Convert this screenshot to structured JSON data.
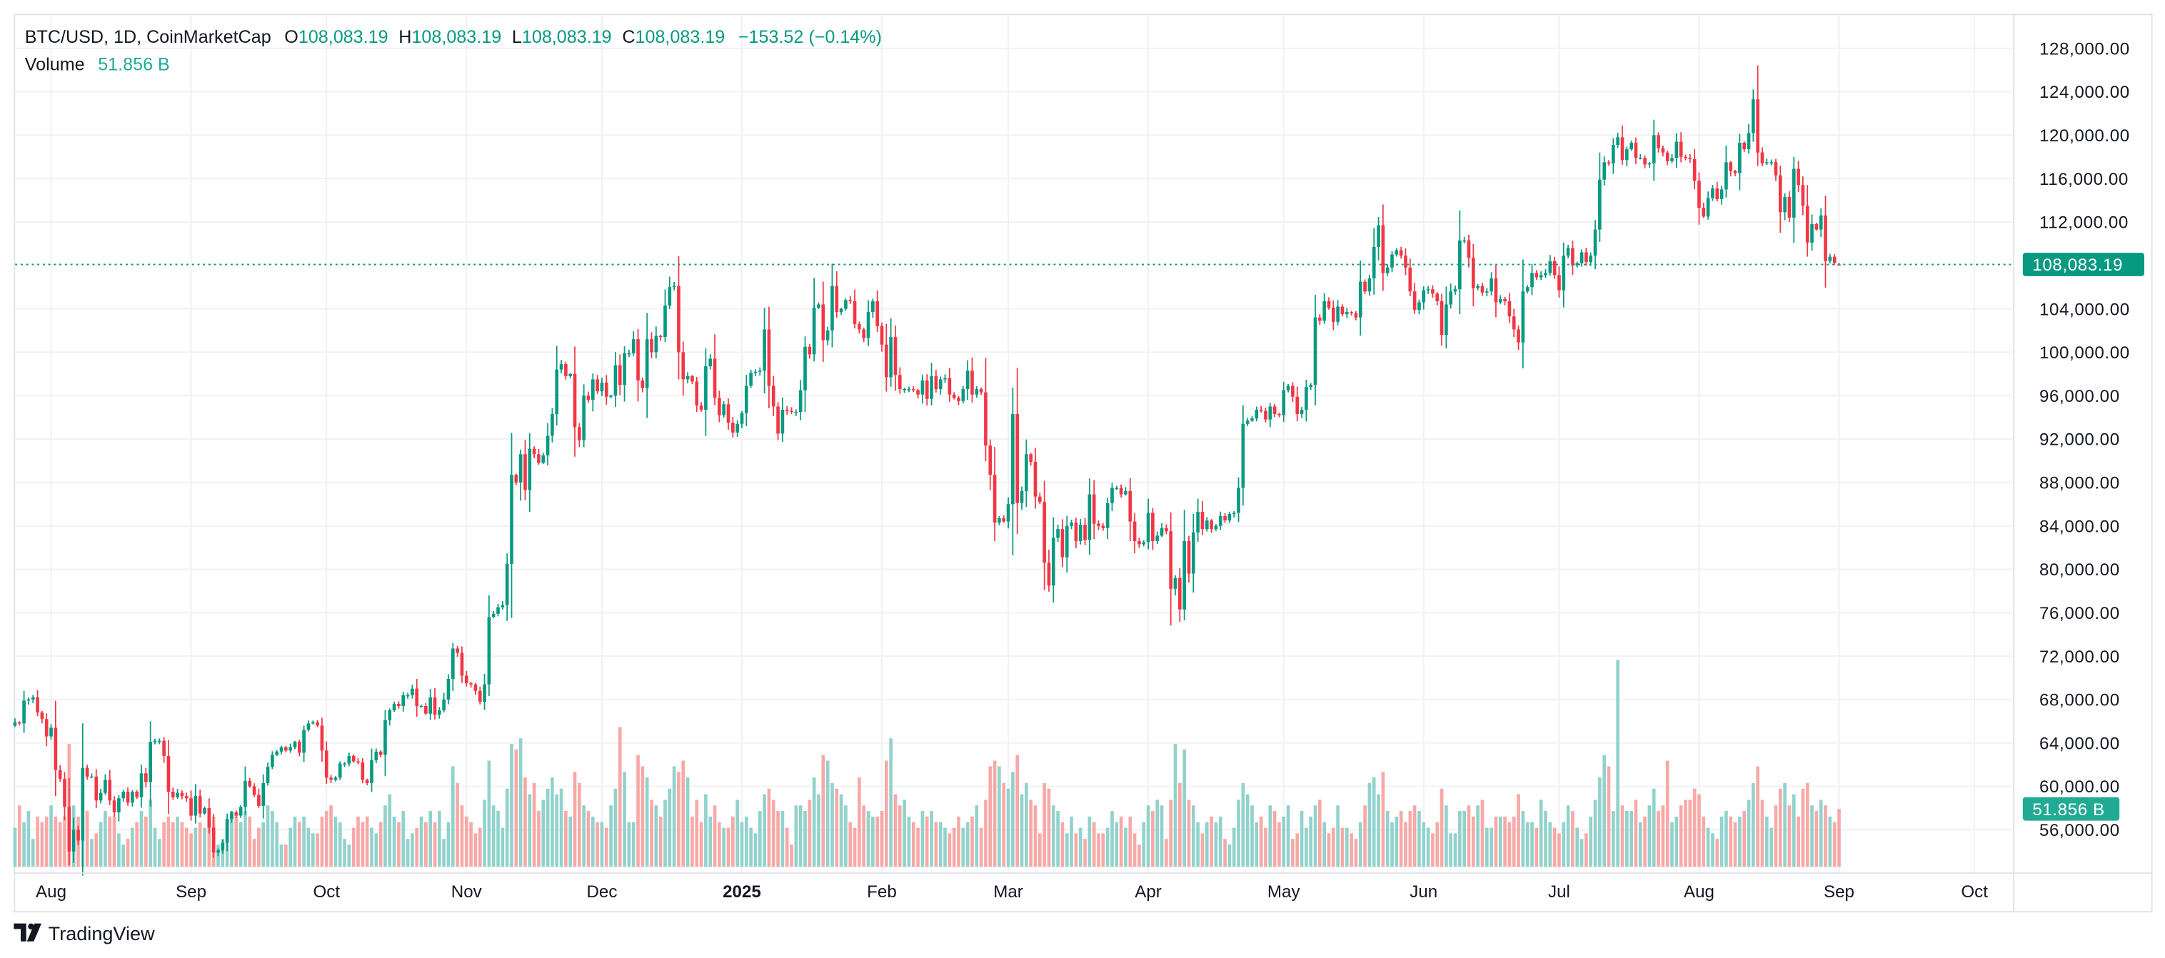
{
  "header": {
    "symbol": "BTC/USD, 1D, CoinMarketCap",
    "open_label": "O",
    "open": "108,083.19",
    "high_label": "H",
    "high": "108,083.19",
    "low_label": "L",
    "low": "108,083.19",
    "close_label": "C",
    "close": "108,083.19",
    "change": "−153.52 (−0.14%)",
    "volume_label": "Volume",
    "volume": "51.856 B"
  },
  "branding": {
    "name": "TradingView"
  },
  "colors": {
    "up": "#089981",
    "down": "#F23645",
    "up_volume": "#92D2CC",
    "down_volume": "#F7A9A7",
    "last_price": "#089981",
    "volume_label": "#22AB94"
  },
  "chart_data": {
    "type": "candlestick",
    "title": "BTC/USD, 1D, CoinMarketCap",
    "price_axis": {
      "ticks": [
        "128,000.00",
        "124,000.00",
        "120,000.00",
        "116,000.00",
        "112,000.00",
        "104,000.00",
        "100,000.00",
        "96,000.00",
        "92,000.00",
        "88,000.00",
        "84,000.00",
        "80,000.00",
        "76,000.00",
        "72,000.00",
        "68,000.00",
        "64,000.00",
        "60,000.00",
        "56,000.00"
      ],
      "tick_values": [
        128000,
        124000,
        120000,
        116000,
        112000,
        104000,
        100000,
        96000,
        92000,
        88000,
        84000,
        80000,
        76000,
        72000,
        68000,
        64000,
        60000,
        56000
      ],
      "range": [
        52800,
        130000
      ]
    },
    "time_axis": {
      "ticks": [
        "Aug",
        "Sep",
        "Oct",
        "Nov",
        "Dec",
        "2025",
        "Feb",
        "Mar",
        "Apr",
        "May",
        "Jun",
        "Jul",
        "Aug",
        "Sep",
        "Oct"
      ],
      "bold_tick": "2025"
    },
    "last_price": {
      "value": 108083.19,
      "label": "108,083.19"
    },
    "last_volume": {
      "value": 51.856,
      "label": "51.856 B"
    },
    "grid": true,
    "close": [
      65900,
      65800,
      67900,
      68000,
      68200,
      66800,
      66200,
      64600,
      65400,
      61500,
      60700,
      58100,
      54000,
      56000,
      55000,
      61700,
      60900,
      60900,
      58700,
      59400,
      60600,
      58700,
      57600,
      58900,
      59500,
      58500,
      59500,
      59000,
      61200,
      60400,
      64100,
      64200,
      64200,
      62800,
      59500,
      59000,
      59400,
      59100,
      58900,
      57300,
      59100,
      57500,
      58000,
      56200,
      53900,
      54100,
      54800,
      57000,
      57600,
      57300,
      58100,
      60500,
      60000,
      59200,
      58200,
      60300,
      61800,
      62900,
      63200,
      63600,
      63300,
      63600,
      64100,
      63100,
      65200,
      65800,
      65900,
      65600,
      63300,
      60800,
      60600,
      60800,
      62100,
      62100,
      62800,
      62300,
      62200,
      60600,
      60300,
      62400,
      63200,
      62900,
      66100,
      67000,
      67600,
      67400,
      68400,
      68400,
      69000,
      67400,
      67400,
      66700,
      68200,
      66600,
      67000,
      68000,
      69900,
      72700,
      72300,
      70200,
      69500,
      69400,
      68800,
      67800,
      69400,
      75600,
      75900,
      76500,
      76700,
      80500,
      88700,
      88000,
      90600,
      87300,
      91100,
      90600,
      89800,
      90500,
      92300,
      94300,
      98400,
      98900,
      97800,
      98000,
      93100,
      91900,
      96000,
      95600,
      97500,
      96400,
      97200,
      95900,
      96000,
      98800,
      97000,
      99900,
      99900,
      101200,
      97400,
      96700,
      101200,
      100000,
      101500,
      101400,
      104300,
      106000,
      106100,
      100000,
      97500,
      97800,
      97300,
      95100,
      94700,
      98700,
      99400,
      95800,
      94200,
      95200,
      93500,
      92600,
      93400,
      94400,
      96900,
      98100,
      98200,
      98300,
      102100,
      96900,
      95000,
      92500,
      94700,
      94600,
      94500,
      94500,
      96500,
      100500,
      99800,
      104100,
      104400,
      101100,
      102000,
      106100,
      103700,
      104000,
      104800,
      104700,
      102600,
      102100,
      101300,
      103700,
      104700,
      102400,
      100700,
      97700,
      101400,
      97900,
      96600,
      96600,
      96600,
      96500,
      96100,
      97400,
      95700,
      97800,
      96600,
      97500,
      97600,
      96100,
      95800,
      95500,
      96600,
      98300,
      96100,
      96600,
      96300,
      91400,
      88700,
      84300,
      84700,
      84400,
      86000,
      94300,
      86100,
      87200,
      90600,
      89900,
      86700,
      86200,
      80600,
      78500,
      82900,
      83700,
      81100,
      84000,
      84300,
      82600,
      84100,
      82700,
      86900,
      84200,
      84000,
      83800,
      86100,
      87500,
      87500,
      86900,
      87200,
      84400,
      82600,
      82300,
      82500,
      85200,
      82600,
      83100,
      83800,
      83500,
      78200,
      79200,
      76300,
      82600,
      79600,
      83400,
      85300,
      83700,
      84500,
      83700,
      84000,
      84900,
      84500,
      85100,
      85200,
      87500,
      93400,
      93700,
      93900,
      94700,
      94600,
      93800,
      95000,
      94300,
      94200,
      96500,
      96900,
      95900,
      94300,
      94700,
      96800,
      97000,
      103200,
      102900,
      104700,
      104100,
      102800,
      104200,
      103500,
      103700,
      103600,
      103200,
      106500,
      105600,
      106800,
      109700,
      111700,
      107300,
      107800,
      109000,
      109400,
      108900,
      107800,
      105600,
      103900,
      104600,
      105700,
      105800,
      105400,
      104700,
      101600,
      104400,
      105600,
      105800,
      110300,
      110300,
      108700,
      105900,
      106100,
      105500,
      105600,
      106800,
      104600,
      104900,
      104700,
      103300,
      102100,
      100900,
      105600,
      106000,
      107300,
      106900,
      107100,
      107300,
      108400,
      107100,
      105700,
      108900,
      109600,
      108000,
      108200,
      109200,
      108300,
      108900,
      111300,
      115900,
      117500,
      117400,
      119100,
      119800,
      117700,
      118700,
      119300,
      117900,
      117900,
      117300,
      117400,
      120000,
      118800,
      118400,
      117600,
      117900,
      119400,
      118000,
      117900,
      117800,
      115800,
      113300,
      112500,
      114200,
      115100,
      114100,
      115000,
      117500,
      116700,
      116500,
      119300,
      118700,
      120200,
      123300,
      118400,
      117400,
      117500,
      117500,
      116300,
      112900,
      114300,
      112400,
      116900,
      115400,
      113500,
      110100,
      111800,
      111300,
      112600,
      108400,
      108800,
      108236.71,
      108083.19
    ],
    "volume_billions": [
      35,
      55,
      40,
      50,
      25,
      45,
      40,
      45,
      55,
      45,
      40,
      45,
      110,
      55,
      45,
      70,
      50,
      25,
      30,
      40,
      50,
      45,
      45,
      30,
      20,
      25,
      35,
      40,
      50,
      45,
      60,
      35,
      25,
      40,
      45,
      40,
      45,
      40,
      35,
      30,
      35,
      40,
      35,
      40,
      45,
      20,
      25,
      40,
      50,
      45,
      40,
      50,
      45,
      25,
      35,
      40,
      55,
      50,
      40,
      20,
      20,
      35,
      45,
      40,
      45,
      35,
      30,
      30,
      45,
      50,
      55,
      45,
      40,
      25,
      20,
      35,
      45,
      40,
      45,
      35,
      30,
      40,
      55,
      65,
      45,
      40,
      50,
      25,
      30,
      35,
      45,
      40,
      50,
      40,
      50,
      25,
      40,
      90,
      75,
      55,
      45,
      40,
      30,
      35,
      60,
      95,
      55,
      50,
      35,
      70,
      110,
      105,
      115,
      80,
      65,
      75,
      50,
      60,
      70,
      80,
      65,
      70,
      50,
      45,
      85,
      75,
      55,
      50,
      45,
      40,
      40,
      35,
      55,
      70,
      125,
      85,
      40,
      40,
      100,
      90,
      80,
      60,
      55,
      45,
      60,
      70,
      90,
      85,
      95,
      80,
      45,
      60,
      40,
      65,
      45,
      55,
      40,
      35,
      35,
      45,
      60,
      40,
      45,
      35,
      30,
      50,
      65,
      70,
      60,
      50,
      50,
      35,
      20,
      55,
      55,
      50,
      60,
      80,
      65,
      100,
      95,
      75,
      70,
      65,
      55,
      40,
      35,
      80,
      55,
      50,
      45,
      45,
      50,
      95,
      115,
      65,
      55,
      60,
      45,
      40,
      35,
      50,
      45,
      50,
      40,
      40,
      35,
      30,
      35,
      45,
      35,
      40,
      45,
      55,
      35,
      60,
      90,
      95,
      90,
      75,
      70,
      85,
      100,
      65,
      75,
      60,
      55,
      30,
      75,
      70,
      55,
      50,
      40,
      30,
      45,
      30,
      35,
      25,
      45,
      40,
      30,
      30,
      35,
      50,
      40,
      45,
      35,
      45,
      30,
      20,
      40,
      55,
      50,
      60,
      55,
      25,
      60,
      110,
      75,
      105,
      60,
      55,
      40,
      30,
      40,
      45,
      40,
      45,
      25,
      20,
      35,
      60,
      75,
      65,
      55,
      40,
      45,
      35,
      55,
      50,
      40,
      45,
      55,
      25,
      30,
      50,
      35,
      45,
      55,
      60,
      40,
      30,
      35,
      55,
      35,
      35,
      30,
      25,
      40,
      55,
      75,
      80,
      65,
      85,
      50,
      40,
      45,
      50,
      40,
      50,
      55,
      50,
      40,
      35,
      30,
      40,
      70,
      55,
      30,
      30,
      50,
      50,
      55,
      45,
      55,
      60,
      35,
      35,
      45,
      45,
      45,
      40,
      45,
      65,
      50,
      40,
      40,
      35,
      60,
      50,
      40,
      35,
      30,
      40,
      55,
      50,
      35,
      25,
      30,
      45,
      60,
      80,
      100,
      90,
      50,
      185,
      55,
      50,
      50,
      60,
      40,
      45,
      55,
      70,
      50,
      55,
      95,
      40,
      45,
      55,
      60,
      60,
      70,
      65,
      45,
      35,
      30,
      25,
      45,
      50,
      45,
      40,
      45,
      50,
      60,
      75,
      90,
      60,
      45,
      35,
      55,
      70,
      75,
      55,
      65,
      45,
      70,
      75,
      55,
      50,
      60,
      55,
      45,
      40,
      51.856
    ]
  }
}
